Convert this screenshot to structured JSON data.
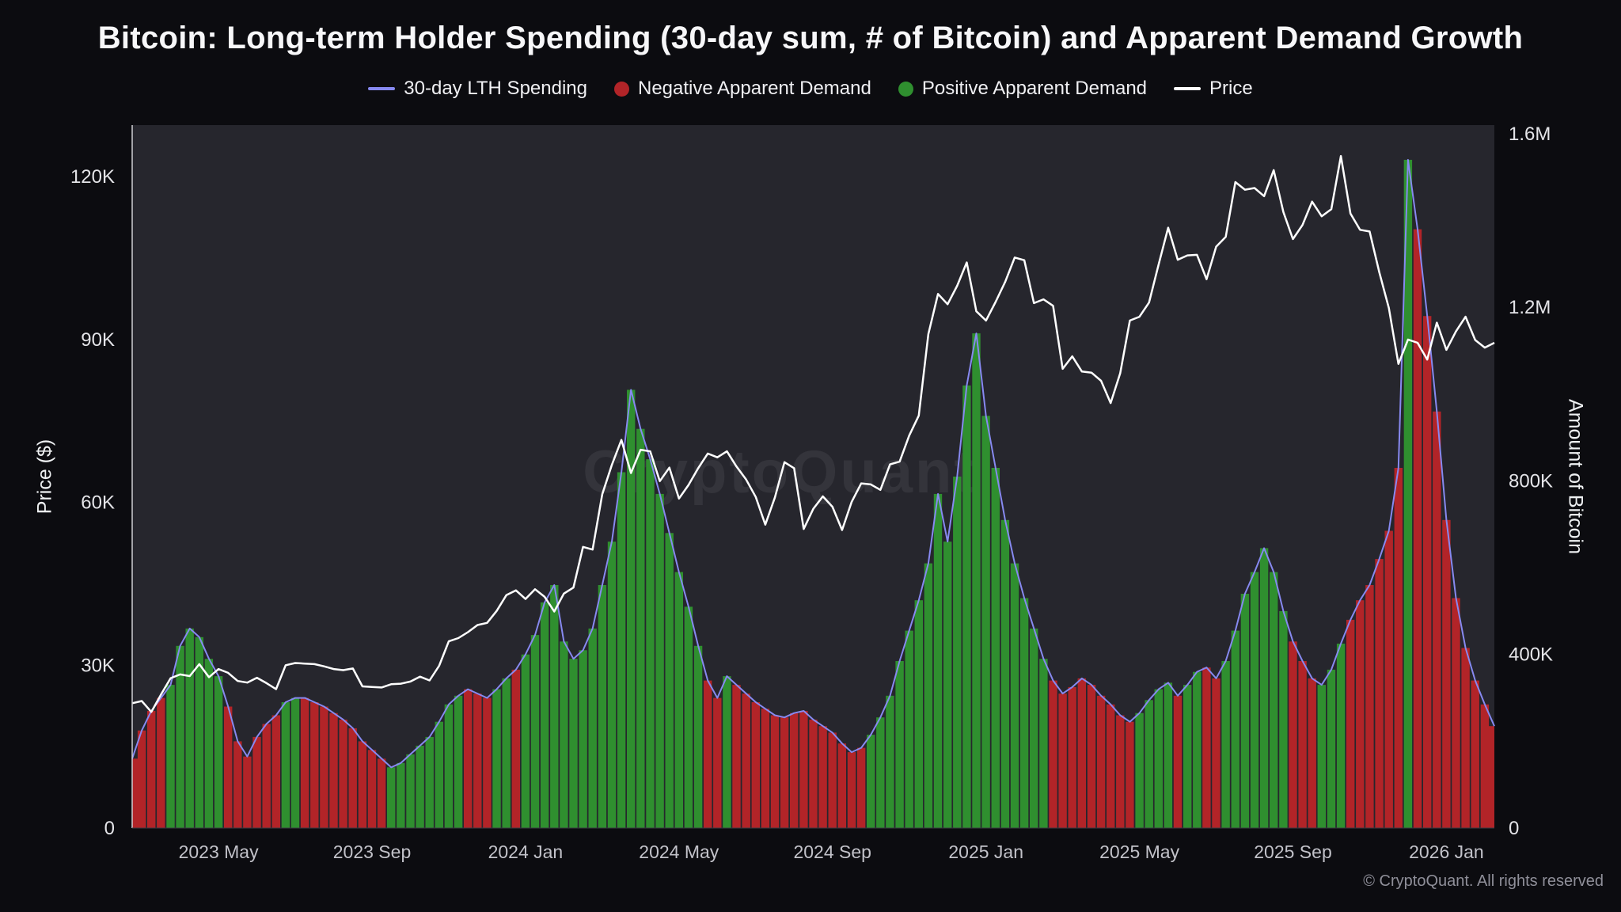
{
  "chart_data": {
    "type": "bar+line composite",
    "title": "Bitcoin: Long-term Holder Spending (30-day sum, # of Bitcoin) and Apparent Demand Growth",
    "watermark": "CryptoQuant",
    "copyright": "© CryptoQuant. All rights reserved",
    "legend": [
      {
        "label": "30-day LTH Spending",
        "marker": "line",
        "color": "#8789f0"
      },
      {
        "label": "Negative Apparent Demand",
        "marker": "dot",
        "color": "#b22428"
      },
      {
        "label": "Positive Apparent Demand",
        "marker": "dot",
        "color": "#2f8f2f"
      },
      {
        "label": "Price",
        "marker": "line",
        "color": "#ffffff"
      }
    ],
    "left_axis": {
      "title": "Price ($)",
      "unit": "USD",
      "tick_labels": [
        "0",
        "30K",
        "60K",
        "90K",
        "120K"
      ],
      "tick_values_k": [
        0,
        30,
        60,
        90,
        120
      ],
      "range_k": [
        0,
        129.5
      ]
    },
    "right_axis": {
      "title": "Amount of Bitcoin",
      "unit": "BTC",
      "tick_labels": [
        "0",
        "400K",
        "800K",
        "1.2M",
        "1.6M"
      ],
      "tick_values_k": [
        0,
        400,
        800,
        1200,
        1600
      ],
      "range_k": [
        0,
        1620
      ]
    },
    "x_axis": {
      "start_date": "2023-02-20",
      "end_date": "2026-02-05",
      "interval_days": 7.6,
      "tick_labels": [
        "2023 May",
        "2023 Sep",
        "2024 Jan",
        "2024 May",
        "2024 Sep",
        "2025 Jan",
        "2025 May",
        "2025 Sep",
        "2026 Jan"
      ],
      "tick_sample_indices": [
        9,
        25,
        41,
        57,
        73,
        89,
        105,
        121,
        137
      ]
    },
    "sample_fields": [
      "lth_spending_thousand_btc",
      "apparent_demand_sign",
      "price_thousand_usd"
    ],
    "samples": [
      [
        160,
        -1,
        23.0
      ],
      [
        225,
        -1,
        23.4
      ],
      [
        270,
        -1,
        21.4
      ],
      [
        300,
        -1,
        24.6
      ],
      [
        330,
        1,
        27.6
      ],
      [
        420,
        1,
        28.3
      ],
      [
        460,
        1,
        28.0
      ],
      [
        440,
        1,
        30.2
      ],
      [
        390,
        1,
        27.8
      ],
      [
        350,
        1,
        29.3
      ],
      [
        280,
        -1,
        28.6
      ],
      [
        200,
        -1,
        27.1
      ],
      [
        165,
        -1,
        26.8
      ],
      [
        210,
        -1,
        27.7
      ],
      [
        240,
        -1,
        26.7
      ],
      [
        260,
        -1,
        25.6
      ],
      [
        290,
        1,
        30.0
      ],
      [
        300,
        1,
        30.4
      ],
      [
        300,
        -1,
        30.3
      ],
      [
        290,
        -1,
        30.2
      ],
      [
        280,
        -1,
        29.8
      ],
      [
        265,
        -1,
        29.3
      ],
      [
        250,
        -1,
        29.1
      ],
      [
        230,
        -1,
        29.4
      ],
      [
        200,
        -1,
        26.1
      ],
      [
        180,
        -1,
        26.0
      ],
      [
        160,
        -1,
        25.9
      ],
      [
        140,
        1,
        26.5
      ],
      [
        150,
        1,
        26.6
      ],
      [
        170,
        1,
        27.0
      ],
      [
        190,
        1,
        27.9
      ],
      [
        210,
        1,
        27.2
      ],
      [
        245,
        1,
        29.9
      ],
      [
        285,
        1,
        34.4
      ],
      [
        305,
        1,
        35.0
      ],
      [
        320,
        -1,
        36.1
      ],
      [
        310,
        -1,
        37.4
      ],
      [
        300,
        -1,
        37.8
      ],
      [
        320,
        1,
        40.0
      ],
      [
        345,
        1,
        42.9
      ],
      [
        365,
        -1,
        43.8
      ],
      [
        400,
        1,
        42.2
      ],
      [
        445,
        1,
        44.0
      ],
      [
        520,
        1,
        42.6
      ],
      [
        560,
        1,
        39.9
      ],
      [
        430,
        1,
        43.2
      ],
      [
        390,
        1,
        44.3
      ],
      [
        410,
        1,
        51.8
      ],
      [
        460,
        1,
        51.3
      ],
      [
        560,
        1,
        61.5
      ],
      [
        660,
        1,
        66.9
      ],
      [
        820,
        1,
        71.5
      ],
      [
        1010,
        1,
        65.4
      ],
      [
        920,
        1,
        69.7
      ],
      [
        850,
        1,
        69.4
      ],
      [
        770,
        1,
        63.9
      ],
      [
        680,
        1,
        66.4
      ],
      [
        590,
        1,
        60.7
      ],
      [
        510,
        1,
        63.2
      ],
      [
        420,
        1,
        66.3
      ],
      [
        340,
        -1,
        69.0
      ],
      [
        300,
        -1,
        68.3
      ],
      [
        350,
        1,
        69.4
      ],
      [
        330,
        -1,
        66.6
      ],
      [
        310,
        -1,
        64.2
      ],
      [
        290,
        -1,
        61.0
      ],
      [
        275,
        -1,
        55.9
      ],
      [
        260,
        -1,
        60.9
      ],
      [
        255,
        -1,
        67.4
      ],
      [
        265,
        -1,
        66.3
      ],
      [
        270,
        -1,
        55.1
      ],
      [
        250,
        -1,
        58.8
      ],
      [
        235,
        -1,
        61.1
      ],
      [
        220,
        -1,
        59.2
      ],
      [
        195,
        -1,
        54.9
      ],
      [
        175,
        -1,
        60.1
      ],
      [
        185,
        -1,
        63.5
      ],
      [
        215,
        1,
        63.3
      ],
      [
        255,
        1,
        62.3
      ],
      [
        305,
        1,
        67.0
      ],
      [
        385,
        1,
        67.5
      ],
      [
        455,
        1,
        72.3
      ],
      [
        525,
        1,
        76.0
      ],
      [
        610,
        1,
        91.0
      ],
      [
        770,
        1,
        98.4
      ],
      [
        660,
        1,
        96.5
      ],
      [
        810,
        1,
        99.9
      ],
      [
        1020,
        1,
        104.2
      ],
      [
        1140,
        1,
        95.2
      ],
      [
        950,
        1,
        93.5
      ],
      [
        830,
        1,
        96.9
      ],
      [
        710,
        1,
        100.6
      ],
      [
        610,
        1,
        105.1
      ],
      [
        530,
        1,
        104.6
      ],
      [
        460,
        1,
        96.7
      ],
      [
        390,
        1,
        97.4
      ],
      [
        340,
        -1,
        96.2
      ],
      [
        310,
        -1,
        84.6
      ],
      [
        325,
        -1,
        86.9
      ],
      [
        345,
        -1,
        84.1
      ],
      [
        330,
        -1,
        83.9
      ],
      [
        305,
        -1,
        82.4
      ],
      [
        285,
        -1,
        78.3
      ],
      [
        260,
        -1,
        83.8
      ],
      [
        245,
        -1,
        93.5
      ],
      [
        265,
        1,
        94.2
      ],
      [
        295,
        1,
        96.8
      ],
      [
        320,
        1,
        103.8
      ],
      [
        335,
        1,
        110.6
      ],
      [
        305,
        -1,
        104.7
      ],
      [
        330,
        1,
        105.5
      ],
      [
        360,
        1,
        105.6
      ],
      [
        370,
        -1,
        101.1
      ],
      [
        345,
        -1,
        107.1
      ],
      [
        385,
        1,
        108.9
      ],
      [
        455,
        1,
        119.0
      ],
      [
        540,
        1,
        117.6
      ],
      [
        590,
        1,
        117.9
      ],
      [
        645,
        1,
        116.4
      ],
      [
        590,
        1,
        121.2
      ],
      [
        500,
        1,
        113.5
      ],
      [
        430,
        -1,
        108.5
      ],
      [
        385,
        -1,
        111.1
      ],
      [
        345,
        -1,
        115.4
      ],
      [
        330,
        1,
        112.7
      ],
      [
        365,
        1,
        114.0
      ],
      [
        425,
        1,
        123.8
      ],
      [
        480,
        -1,
        113.2
      ],
      [
        525,
        -1,
        110.2
      ],
      [
        560,
        -1,
        109.9
      ],
      [
        620,
        -1,
        102.4
      ],
      [
        685,
        -1,
        95.8
      ],
      [
        830,
        -1,
        85.5
      ],
      [
        1540,
        1,
        90.0
      ],
      [
        1380,
        -1,
        89.4
      ],
      [
        1180,
        -1,
        86.3
      ],
      [
        960,
        -1,
        93.1
      ],
      [
        710,
        -1,
        88.1
      ],
      [
        530,
        -1,
        91.5
      ],
      [
        415,
        -1,
        94.2
      ],
      [
        340,
        -1,
        89.9
      ],
      [
        285,
        -1,
        88.5
      ],
      [
        235,
        -1,
        89.4
      ]
    ],
    "colors": {
      "positive_demand": "#2f8f2f",
      "negative_demand": "#b22428",
      "lth_line": "#8789f0",
      "price_line": "#ffffff",
      "plot_bg": "#26262d",
      "page_bg": "#0c0c10"
    }
  }
}
